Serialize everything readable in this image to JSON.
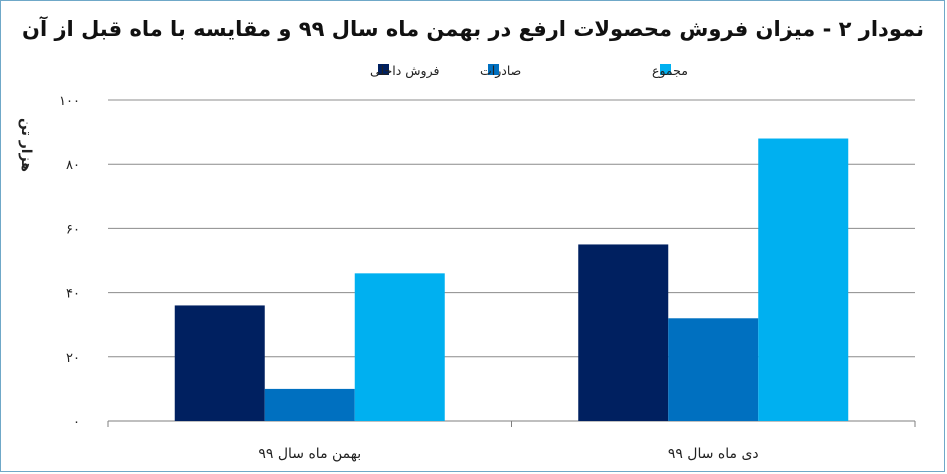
{
  "chart_data": {
    "type": "bar",
    "title": "نمودار ۲ - میزان فروش محصولات ارفع در بهمن ماه سال ۹۹ و مقایسه با ماه قبل از آن",
    "ylabel": "هزار تن",
    "xlabel": "",
    "categories": [
      "بهمن ماه سال ۹۹",
      "دی ماه سال ۹۹"
    ],
    "series": [
      {
        "name": "فروش داخلی",
        "color": "#002060",
        "values": [
          36,
          55
        ]
      },
      {
        "name": "صادرات",
        "color": "#0070c0",
        "values": [
          10,
          32
        ]
      },
      {
        "name": "مجموع",
        "color": "#00b0f0",
        "values": [
          46,
          88
        ]
      }
    ],
    "ylim": [
      0,
      100
    ],
    "yticks": [
      0,
      20,
      40,
      60,
      80,
      100
    ],
    "ytick_labels": [
      "۰",
      "۲۰",
      "۴۰",
      "۶۰",
      "۸۰",
      "۱۰۰"
    ],
    "grid": true,
    "legend_position": "top"
  }
}
